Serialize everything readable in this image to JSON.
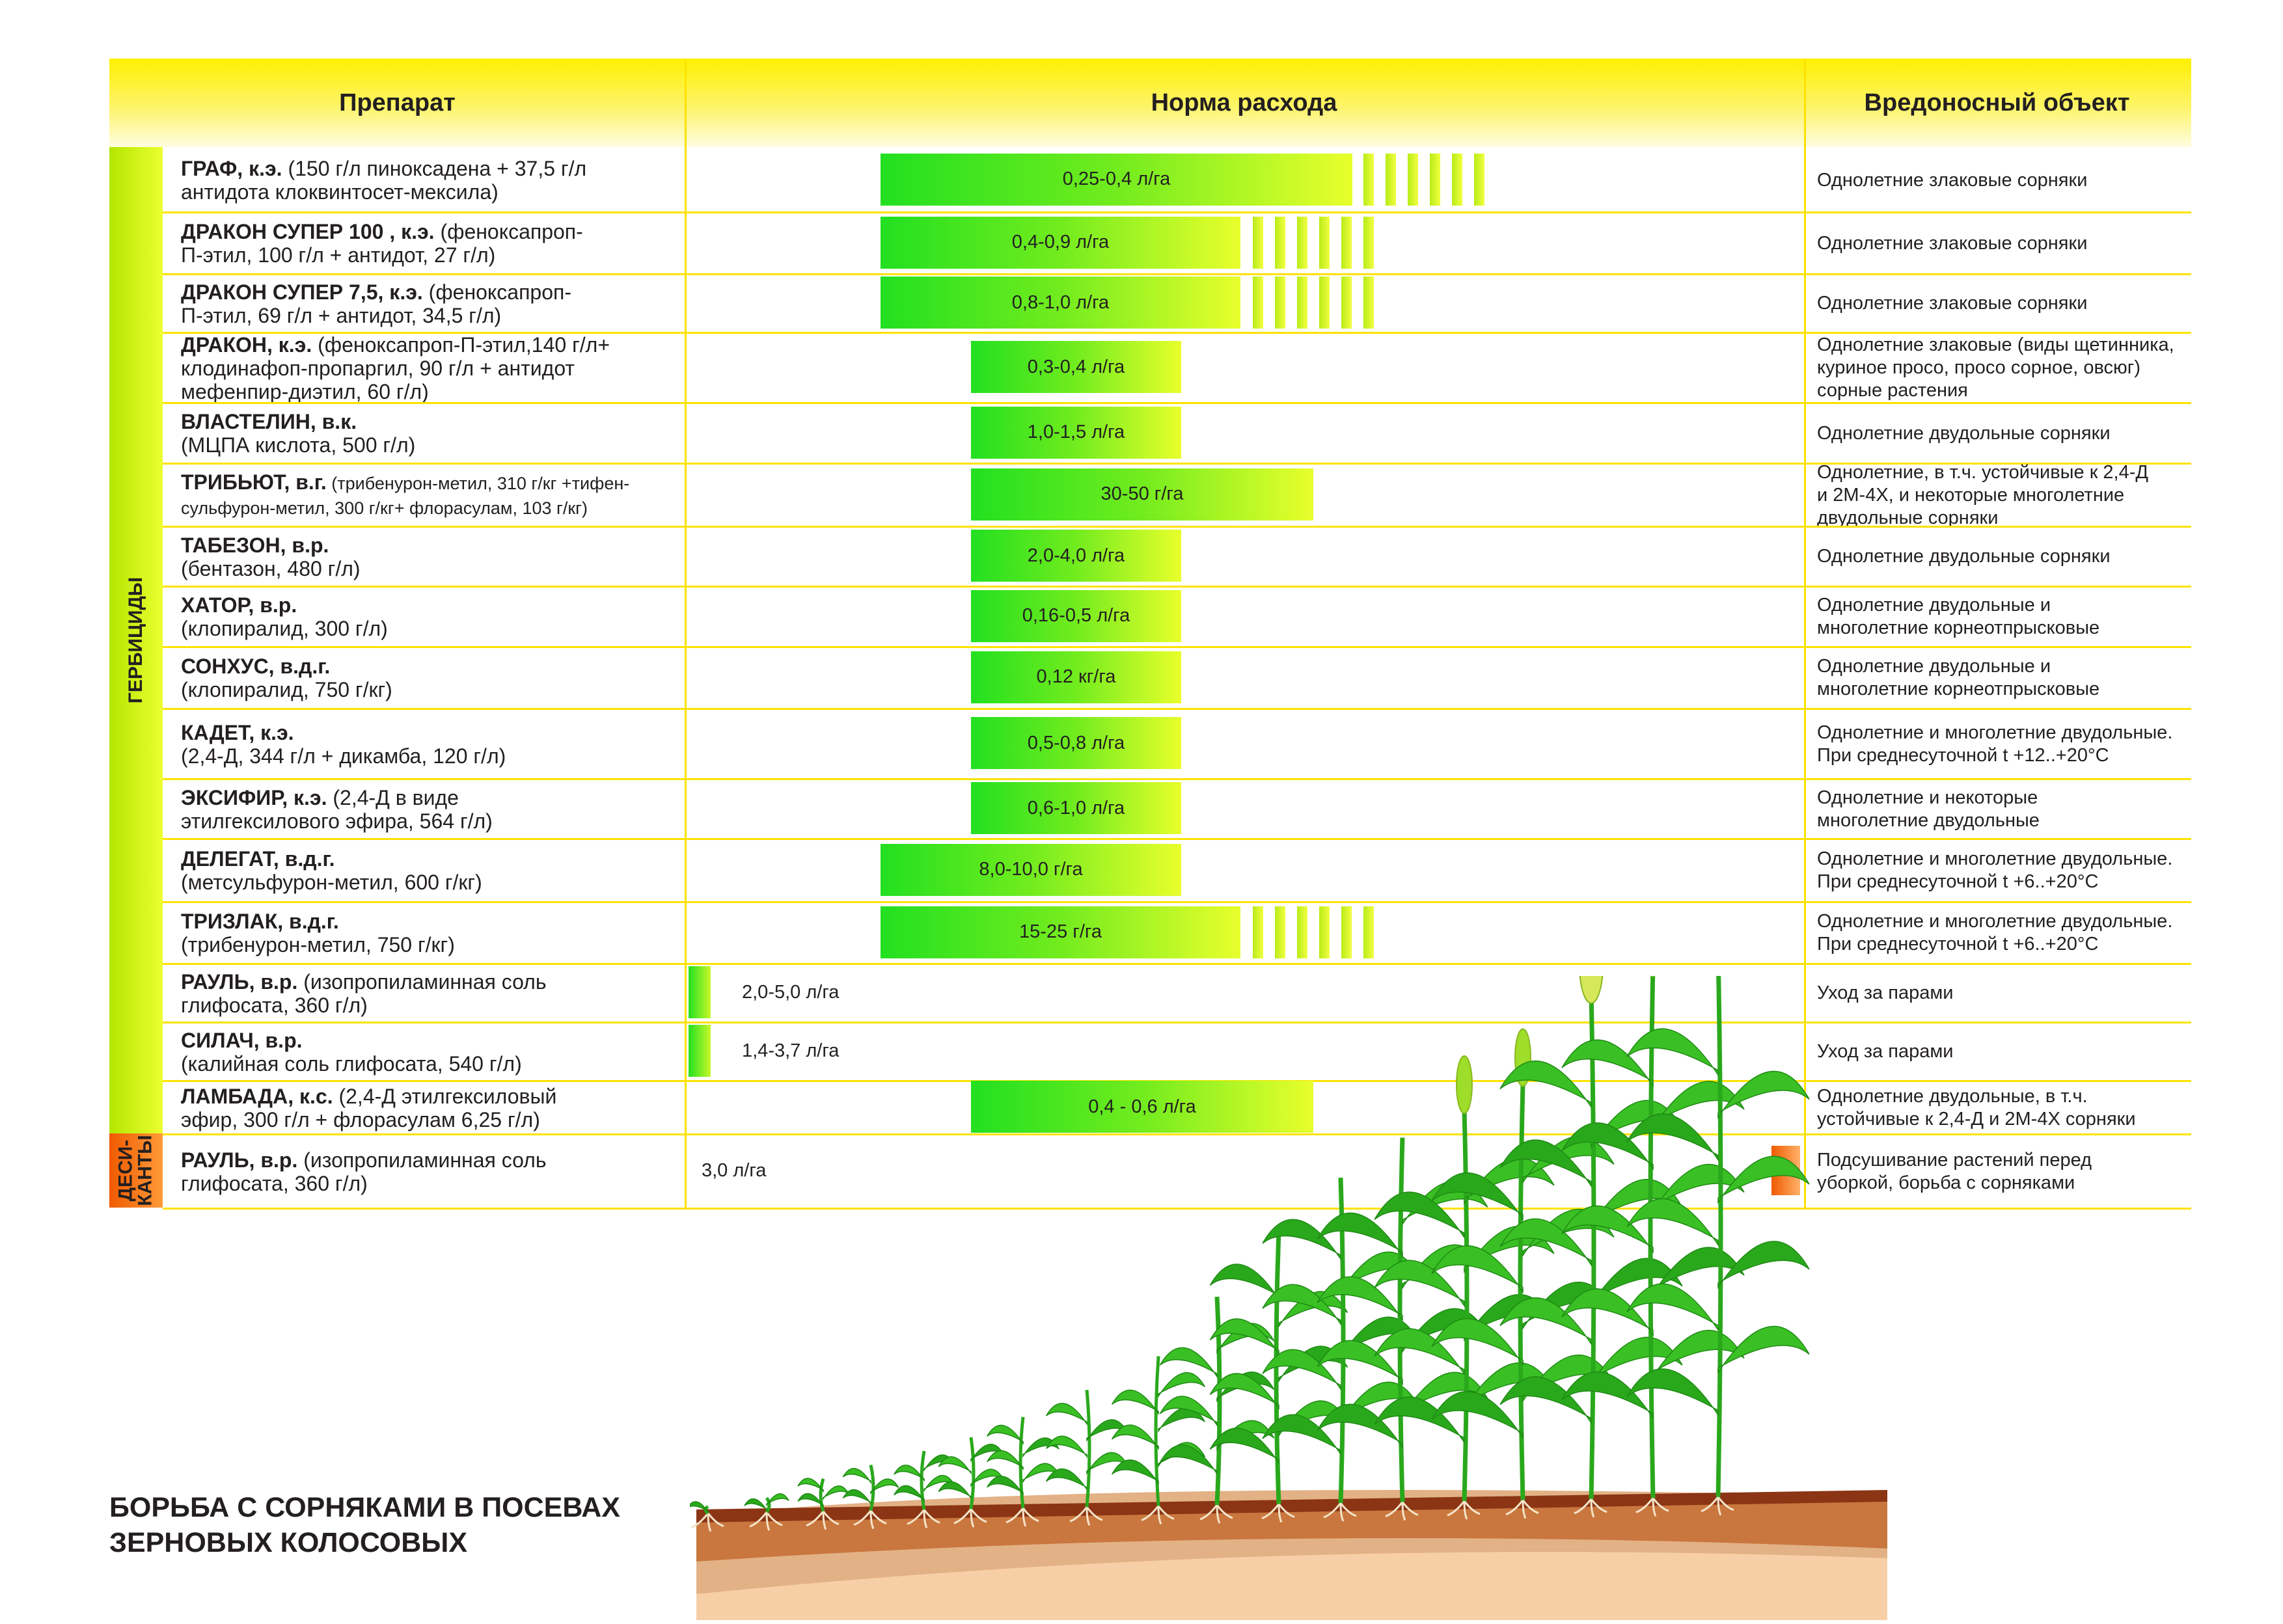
{
  "header": {
    "col1": "Препарат",
    "col2": "Норма расхода",
    "col3": "Вредоносный объект"
  },
  "categories": {
    "herbicides": "ГЕРБИЦИДЫ",
    "desiccants_l1": "ДЕСИ-",
    "desiccants_l2": "КАНТЫ"
  },
  "rows": [
    {
      "lines": [
        [
          {
            "t": "ГРАФ, к.э.",
            "b": true
          },
          {
            "t": " (150 г/л пиноксадена + 37,5 г/л"
          }
        ],
        [
          {
            "t": "антидота клоквинтосет-мексила)"
          }
        ]
      ],
      "rate": "0,25-0,4 л/га",
      "pest": [
        "Однолетние злаковые сорняки"
      ]
    },
    {
      "lines": [
        [
          {
            "t": "ДРАКОН СУПЕР 100 , к.э.",
            "b": true
          },
          {
            "t": " (феноксапроп-"
          }
        ],
        [
          {
            "t": "П-этил, 100 г/л + антидот, 27 г/л)"
          }
        ]
      ],
      "rate": "0,4-0,9 л/га",
      "pest": [
        "Однолетние злаковые сорняки"
      ]
    },
    {
      "lines": [
        [
          {
            "t": "ДРАКОН СУПЕР 7,5, к.э.",
            "b": true
          },
          {
            "t": " (феноксапроп-"
          }
        ],
        [
          {
            "t": "П-этил, 69 г/л + антидот, 34,5 г/л)"
          }
        ]
      ],
      "rate": "0,8-1,0 л/га",
      "pest": [
        "Однолетние злаковые сорняки"
      ]
    },
    {
      "lines": [
        [
          {
            "t": "ДРАКОН, к.э.",
            "b": true
          },
          {
            "t": " (феноксапроп-П-этил,140 г/л+"
          }
        ],
        [
          {
            "t": "клодинафоп-пропаргил, 90 г/л + антидот"
          }
        ],
        [
          {
            "t": "мефенпир-диэтил, 60 г/л)"
          }
        ]
      ],
      "rate": "0,3-0,4 л/га",
      "pest": [
        "Однолетние злаковые (виды щетинника,",
        "куриное просо, просо сорное, овсюг)",
        "сорные растения"
      ]
    },
    {
      "lines": [
        [
          {
            "t": "ВЛАСТЕЛИН, в.к.",
            "b": true
          }
        ],
        [
          {
            "t": "(МЦПА кислота, 500 г/л)"
          }
        ]
      ],
      "rate": "1,0-1,5 л/га",
      "pest": [
        "Однолетние двудольные сорняки"
      ]
    },
    {
      "lines": [
        [
          {
            "t": "ТРИБЬЮТ, в.г.",
            "b": true
          },
          {
            "t": " (трибенурон-метил, 310 г/кг +тифен-",
            "s": true
          }
        ],
        [
          {
            "t": "сульфурон-метил, 300 г/кг+ флорасулам, 103 г/кг)",
            "s": true
          }
        ]
      ],
      "rate": "30-50 г/га",
      "pest": [
        "Однолетние, в т.ч. устойчивые к 2,4-Д",
        "и 2М-4Х, и некоторые многолетние",
        "двудольные сорняки"
      ]
    },
    {
      "lines": [
        [
          {
            "t": "ТАБЕЗОН, в.р.",
            "b": true
          }
        ],
        [
          {
            "t": "(бентазон, 480 г/л)"
          }
        ]
      ],
      "rate": "2,0-4,0 л/га",
      "pest": [
        "Однолетние двудольные сорняки"
      ]
    },
    {
      "lines": [
        [
          {
            "t": "ХАТОР, в.р.",
            "b": true
          }
        ],
        [
          {
            "t": "(клопиралид, 300 г/л)"
          }
        ]
      ],
      "rate": "0,16-0,5 л/га",
      "pest": [
        "Однолетние двудольные и",
        "многолетние корнеотпрысковые"
      ]
    },
    {
      "lines": [
        [
          {
            "t": "СОНХУС, в.д.г.",
            "b": true
          }
        ],
        [
          {
            "t": "(клопиралид, 750 г/кг)"
          }
        ]
      ],
      "rate": "0,12 кг/га",
      "pest": [
        "Однолетние двудольные и",
        "многолетние корнеотпрысковые"
      ]
    },
    {
      "lines": [
        [
          {
            "t": "КАДЕТ, к.э.",
            "b": true
          }
        ],
        [
          {
            "t": "(2,4-Д, 344 г/л + дикамба, 120 г/л)"
          }
        ]
      ],
      "rate": "0,5-0,8 л/га",
      "pest": [
        "Однолетние и многолетние двудольные.",
        "При среднесуточной t +12..+20°С"
      ]
    },
    {
      "lines": [
        [
          {
            "t": "ЭКСИФИР, к.э.",
            "b": true
          },
          {
            "t": " (2,4-Д в виде"
          }
        ],
        [
          {
            "t": "этилгексилового эфира, 564 г/л)"
          }
        ]
      ],
      "rate": "0,6-1,0 л/га",
      "pest": [
        "Однолетние и некоторые",
        "многолетние двудольные"
      ]
    },
    {
      "lines": [
        [
          {
            "t": "ДЕЛЕГАТ, в.д.г.",
            "b": true
          }
        ],
        [
          {
            "t": "(метсульфурон-метил, 600 г/кг)"
          }
        ]
      ],
      "rate": "8,0-10,0 г/га",
      "pest": [
        "Однолетние и многолетние двудольные.",
        "При среднесуточной t +6..+20°С"
      ]
    },
    {
      "lines": [
        [
          {
            "t": "ТРИЗЛАК, в.д.г.",
            "b": true
          }
        ],
        [
          {
            "t": "(трибенурон-метил, 750 г/кг)"
          }
        ]
      ],
      "rate": "15-25 г/га",
      "pest": [
        "Однолетние и многолетние двудольные.",
        "При среднесуточной t +6..+20°С"
      ]
    },
    {
      "lines": [
        [
          {
            "t": "РАУЛЬ, в.р.",
            "b": true
          },
          {
            "t": " (изопропиламинная соль"
          }
        ],
        [
          {
            "t": "глифосата, 360 г/л)"
          }
        ]
      ],
      "rate": "2,0-5,0 л/га",
      "pest": [
        "Уход за парами"
      ]
    },
    {
      "lines": [
        [
          {
            "t": "СИЛАЧ, в.р.",
            "b": true
          }
        ],
        [
          {
            "t": "(калийная соль глифосата, 540 г/л)"
          }
        ]
      ],
      "rate": "1,4-3,7 л/га",
      "pest": [
        "Уход за парами"
      ]
    },
    {
      "lines": [
        [
          {
            "t": "ЛАМБАДА, к.с.",
            "b": true
          },
          {
            "t": " (2,4-Д этилгексиловый"
          }
        ],
        [
          {
            "t": "эфир, 300 г/л + флорасулам 6,25 г/л)"
          }
        ]
      ],
      "rate": "0,4 - 0,6 л/га",
      "pest": [
        "Однолетние двудольные, в т.ч.",
        "устойчивые к 2,4-Д и 2М-4Х сорняки"
      ]
    },
    {
      "lines": [
        [
          {
            "t": "РАУЛЬ, в.р.",
            "b": true
          },
          {
            "t": " (изопропиламинная соль"
          }
        ],
        [
          {
            "t": "глифосата, 360 г/л)"
          }
        ]
      ],
      "rate": "3,0 л/га",
      "pest": [
        "Подсушивание растений перед",
        "уборкой, борьба с сорняками"
      ]
    }
  ],
  "footer": {
    "line1": "БОРЬБА С СОРНЯКАМИ В ПОСЕВАХ",
    "line2": "ЗЕРНОВЫХ КОЛОСОВЫХ"
  },
  "colors": {
    "header_yellow": "#fff000",
    "bar_green": "#22e020",
    "bar_yellow": "#e8ff2c",
    "desiccant_orange": "#f05a00",
    "soil_dark": "#8b3515",
    "soil_light": "#f7cfa7",
    "plant_green": "#2aa81c",
    "ear_yellow": "#d6e85a"
  }
}
